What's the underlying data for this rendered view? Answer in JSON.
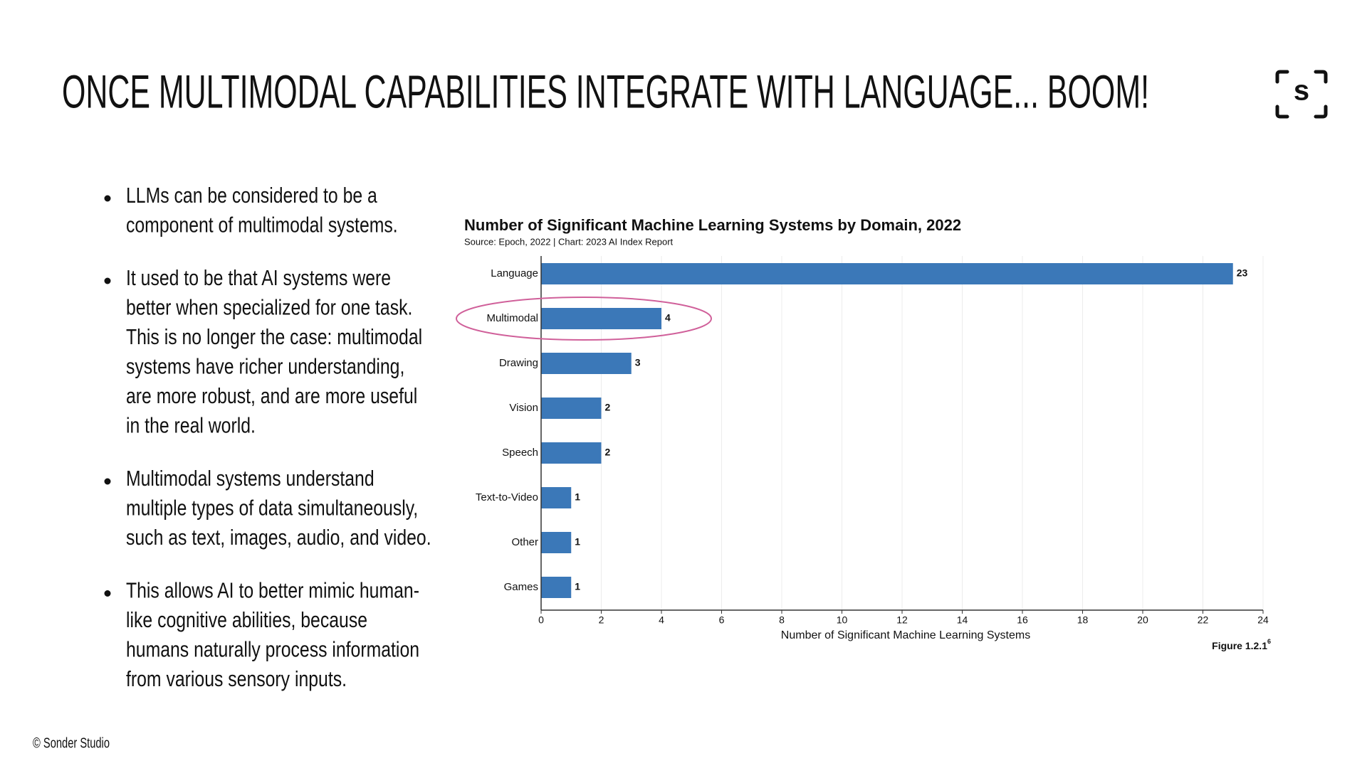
{
  "title": "ONCE MULTIMODAL CAPABILITIES INTEGRATE WITH LANGUAGE... BOOM!",
  "logo": "s",
  "bullets": [
    [
      "LLMs can be considered to be a",
      "component of multimodal systems."
    ],
    [
      "It used to be that AI systems were",
      "better when specialized for one task.",
      "This is no longer the case: multimodal",
      "systems have richer understanding,",
      "are more robust, and are more useful",
      "in the real world."
    ],
    [
      "Multimodal systems understand",
      "multiple types of data simultaneously,",
      "such as text, images, audio, and video."
    ],
    [
      "This allows AI to better mimic human-",
      "like cognitive abilities, because",
      "humans naturally process information",
      "from various sensory inputs."
    ]
  ],
  "footer": "© Sonder Studio",
  "chart_data": {
    "type": "hbar",
    "title": "Number of Significant Machine Learning Systems by Domain, 2022",
    "subtitle": "Source: Epoch, 2022 | Chart: 2023 AI Index Report",
    "x_label": "Number of Significant Machine Learning Systems",
    "figure_label": "Figure 1.2.1",
    "figure_note": "6",
    "categories": [
      "Language",
      "Multimodal",
      "Drawing",
      "Vision",
      "Speech",
      "Text-to-Video",
      "Other",
      "Games"
    ],
    "values": [
      23,
      4,
      3,
      2,
      2,
      1,
      1,
      1
    ],
    "color": "#3b78b8",
    "xlim": [
      0,
      24
    ],
    "xticks": [
      0,
      2,
      4,
      6,
      8,
      10,
      12,
      14,
      16,
      18,
      20,
      22,
      24
    ],
    "grid": true
  }
}
